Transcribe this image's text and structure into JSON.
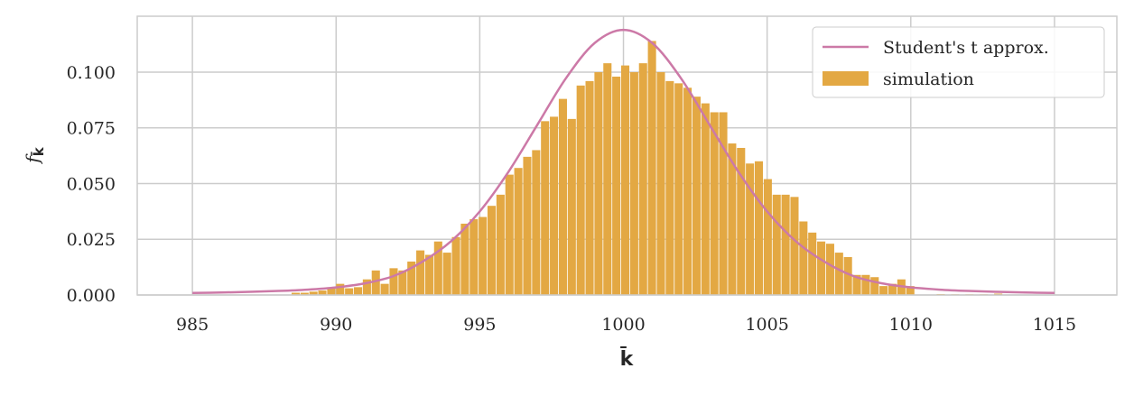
{
  "chart_data": {
    "type": "bar",
    "xlabel": "k̄",
    "ylabel": "f",
    "ylabel_subscript": "k̄",
    "xlim": [
      983.08,
      1017.17
    ],
    "ylim": [
      0,
      0.1251
    ],
    "grid": true,
    "legend_placement": "top-right",
    "x_ticks": [
      "985",
      "990",
      "995",
      "1000",
      "1005",
      "1010",
      "1015"
    ],
    "y_ticks": [
      "0.000",
      "0.025",
      "0.050",
      "0.075",
      "0.100"
    ],
    "colors": {
      "simulation": "#e3a843",
      "curve": "#cc79a7",
      "grid": "#cccccc"
    },
    "series": [
      {
        "name": "simulation",
        "type": "bar",
        "bin_start": 988.45,
        "bin_width": 0.31,
        "values": [
          0.001,
          0.001,
          0.0015,
          0.002,
          0.003,
          0.005,
          0.003,
          0.0035,
          0.007,
          0.011,
          0.005,
          0.012,
          0.011,
          0.015,
          0.02,
          0.018,
          0.024,
          0.019,
          0.026,
          0.032,
          0.034,
          0.035,
          0.04,
          0.045,
          0.054,
          0.057,
          0.062,
          0.065,
          0.078,
          0.08,
          0.088,
          0.079,
          0.094,
          0.096,
          0.1,
          0.104,
          0.098,
          0.103,
          0.1,
          0.104,
          0.114,
          0.1,
          0.096,
          0.095,
          0.093,
          0.089,
          0.086,
          0.082,
          0.082,
          0.068,
          0.066,
          0.059,
          0.06,
          0.052,
          0.045,
          0.045,
          0.044,
          0.033,
          0.028,
          0.024,
          0.023,
          0.019,
          0.017,
          0.009,
          0.009,
          0.008,
          0.004,
          0.005,
          0.007,
          0.004,
          0.0004,
          0.0003,
          0.0003,
          0.0003,
          0.0006
        ]
      },
      {
        "name": "Student's t approx.",
        "type": "line",
        "x": [
          985,
          986,
          987,
          988,
          989,
          990,
          991,
          992,
          993,
          994,
          995,
          996,
          997,
          998,
          999,
          1000,
          1001,
          1002,
          1003,
          1004,
          1005,
          1006,
          1007,
          1008,
          1009,
          1010,
          1011,
          1012,
          1013,
          1014,
          1015
        ],
        "y": [
          0.0009,
          0.0011,
          0.0014,
          0.0018,
          0.0024,
          0.0034,
          0.0052,
          0.0085,
          0.0149,
          0.0241,
          0.0375,
          0.0553,
          0.0763,
          0.0973,
          0.1131,
          0.119,
          0.1131,
          0.0973,
          0.0763,
          0.0553,
          0.0375,
          0.0241,
          0.0149,
          0.0085,
          0.0052,
          0.0034,
          0.0024,
          0.0018,
          0.0014,
          0.0011,
          0.0009
        ]
      }
    ]
  }
}
